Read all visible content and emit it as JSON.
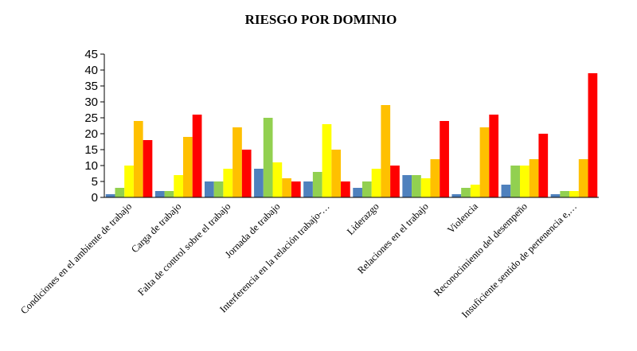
{
  "chart_data": {
    "type": "bar",
    "title": "RIESGO POR DOMINIO",
    "xlabel": "",
    "ylabel": "",
    "ylim": [
      0,
      45
    ],
    "yticks": [
      0,
      5,
      10,
      15,
      20,
      25,
      30,
      35,
      40,
      45
    ],
    "grid": false,
    "legend": "none",
    "categories": [
      "Condiciones en el ambiente de trabajo",
      "Carga de trabajo",
      "Falta de control sobre el trabajo",
      "Jornada de trabajo",
      "Interferencia en la relación trabajo-…",
      "Liderazgo",
      "Relaciones en el trabajo",
      "Violencia",
      "Reconocimiento del desempeño",
      "Insuficiente sentido de pertenencia e,…"
    ],
    "series": [
      {
        "color": "#4f81bd",
        "values": [
          1,
          2,
          5,
          9,
          5,
          3,
          7,
          1,
          4,
          1
        ]
      },
      {
        "color": "#92d050",
        "values": [
          3,
          2,
          5,
          25,
          8,
          5,
          7,
          3,
          10,
          2
        ]
      },
      {
        "color": "#ffff00",
        "values": [
          10,
          7,
          9,
          11,
          23,
          9,
          6,
          4,
          10,
          2
        ]
      },
      {
        "color": "#ffc000",
        "values": [
          24,
          19,
          22,
          6,
          15,
          29,
          12,
          22,
          12,
          12
        ]
      },
      {
        "color": "#ff0000",
        "values": [
          18,
          26,
          15,
          5,
          5,
          10,
          24,
          26,
          20,
          39
        ]
      }
    ]
  }
}
